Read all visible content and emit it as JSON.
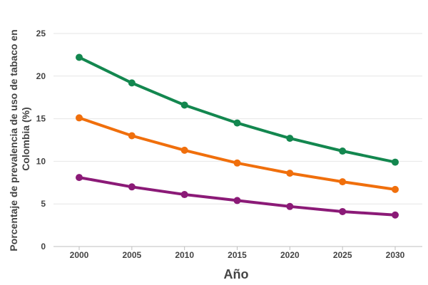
{
  "chart_data": {
    "type": "line",
    "x": [
      2000,
      2005,
      2010,
      2015,
      2020,
      2025,
      2030
    ],
    "xlabel": "Año",
    "ylabel": "Porcentaje de prevalencia de uso de tabaco en Colombia (%)",
    "ylim": [
      0,
      25
    ],
    "yticks": [
      0,
      5,
      10,
      15,
      20,
      25
    ],
    "grid": true,
    "series": [
      {
        "color": "#13874f",
        "values": [
          22.2,
          19.2,
          16.6,
          14.5,
          12.7,
          11.2,
          9.9
        ]
      },
      {
        "color": "#f06f0c",
        "values": [
          15.1,
          13.0,
          11.3,
          9.8,
          8.6,
          7.6,
          6.7
        ]
      },
      {
        "color": "#8b1a77",
        "values": [
          8.1,
          7.0,
          6.1,
          5.4,
          4.7,
          4.1,
          3.7
        ]
      }
    ]
  }
}
